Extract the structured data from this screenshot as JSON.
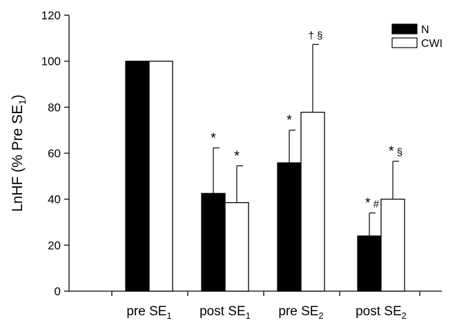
{
  "chart_data": {
    "type": "bar",
    "title": "",
    "xlabel": "",
    "ylabel": "LnHF (% Pre SE1)",
    "ylim": [
      0,
      120
    ],
    "yticks": [
      0,
      20,
      40,
      60,
      80,
      100,
      120
    ],
    "grid": false,
    "legend_position": "top-right",
    "categories": [
      {
        "base": "pre SE",
        "sub": "1"
      },
      {
        "base": "post SE",
        "sub": "1"
      },
      {
        "base": "pre SE",
        "sub": "2"
      },
      {
        "base": "post SE",
        "sub": "2"
      }
    ],
    "series": [
      {
        "name": "N",
        "color": "#000000",
        "values": [
          100,
          42.5,
          55.8,
          24
        ],
        "error": [
          0,
          19.8,
          14.2,
          10
        ]
      },
      {
        "name": "CWI",
        "color": "#ffffff",
        "values": [
          100,
          38.5,
          77.8,
          40
        ],
        "error": [
          0,
          16,
          29.5,
          16.5
        ]
      }
    ],
    "annotations": [
      {
        "category": 1,
        "series": 0,
        "text": "*"
      },
      {
        "category": 1,
        "series": 1,
        "text": "*"
      },
      {
        "category": 2,
        "series": 0,
        "text": "*"
      },
      {
        "category": 2,
        "series": 1,
        "text": "† §"
      },
      {
        "category": 3,
        "series": 0,
        "text": "* #"
      },
      {
        "category": 3,
        "series": 1,
        "text": "* §"
      }
    ]
  }
}
